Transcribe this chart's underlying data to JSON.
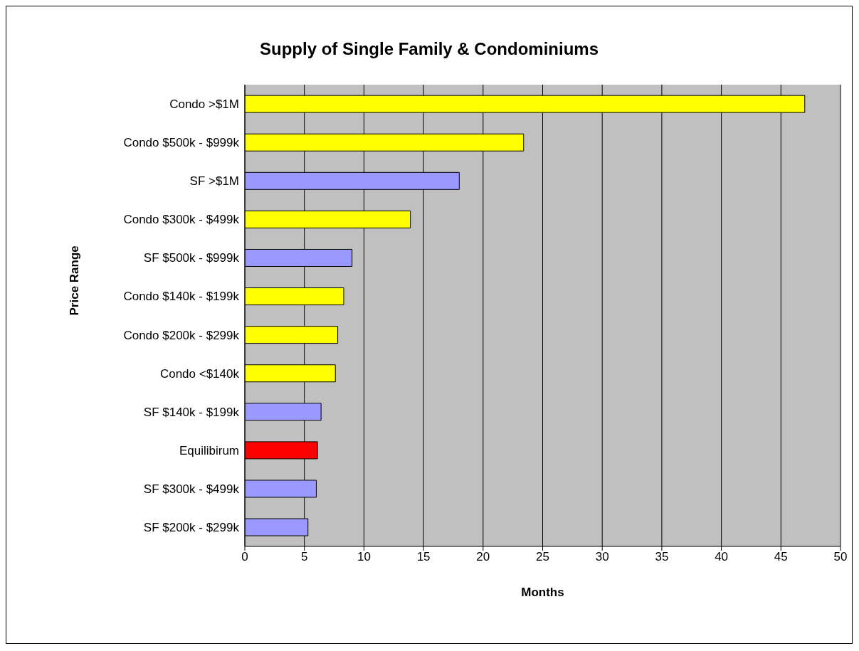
{
  "chart_data": {
    "type": "bar",
    "orientation": "horizontal",
    "title": "Supply of Single Family & Condominiums",
    "xlabel": "Months",
    "ylabel": "Price Range",
    "categories": [
      "Condo >$1M",
      "Condo $500k - $999k",
      "SF >$1M",
      "Condo $300k - $499k",
      "SF $500k - $999k",
      "Condo $140k - $199k",
      "Condo $200k - $299k",
      "Condo <$140k",
      "SF $140k - $199k",
      "Equilibirum",
      "SF $300k - $499k",
      "SF $200k - $299k"
    ],
    "values": [
      47,
      23.4,
      18,
      13.9,
      9,
      8.3,
      7.8,
      7.6,
      6.4,
      6.1,
      6,
      5.3
    ],
    "colors": [
      "#ffff00",
      "#ffff00",
      "#9999ff",
      "#ffff00",
      "#9999ff",
      "#ffff00",
      "#ffff00",
      "#ffff00",
      "#9999ff",
      "#ff0000",
      "#9999ff",
      "#9999ff"
    ],
    "xlim": [
      0,
      50
    ],
    "xticks": [
      0,
      5,
      10,
      15,
      20,
      25,
      30,
      35,
      40,
      45,
      50
    ],
    "grid": "x"
  }
}
